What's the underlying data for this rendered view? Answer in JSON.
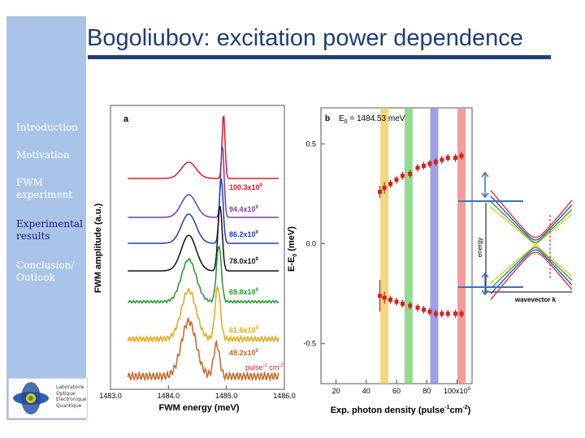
{
  "slide": {
    "title": "Bogoliubov: excitation power dependence"
  },
  "sidebar": {
    "items": [
      {
        "label": "Introduction",
        "color": "#ffffff"
      },
      {
        "label": "Motivation",
        "color": "#ffffff"
      },
      {
        "label": "FWM experiment",
        "lines": [
          "FWM",
          "experiment"
        ],
        "color": "#ffffff"
      },
      {
        "label": "Experimental results",
        "lines": [
          "Experimental",
          "results"
        ],
        "color": "#1a1a80"
      },
      {
        "label": "Conclusion/ Outlook",
        "lines": [
          "Conclusion/",
          "Outlook"
        ],
        "color": "#ffffff"
      }
    ],
    "logo_lines": [
      "Laboratoire",
      "Optique",
      "Electronique",
      "Quantique"
    ]
  },
  "chart_data": [
    {
      "type": "line",
      "panel": "a",
      "xlabel": "FWM energy (meV)",
      "ylabel": "FWM amplitude (a.u.)",
      "x_ticks": [
        "1483.0",
        "1484.0",
        "1485.0",
        "1486.0"
      ],
      "xlim": [
        1483.0,
        1486.0
      ],
      "series": [
        {
          "name": "100.3x10^9",
          "label": "100.3x10",
          "color": "#e0182a"
        },
        {
          "name": "94.4x10^9",
          "label": "94.4x10",
          "color": "#7a3aa6"
        },
        {
          "name": "86.2x10^9",
          "label": "86.2x10",
          "color": "#1f3fb0"
        },
        {
          "name": "78.0x10^9",
          "label": "78.0x10",
          "color": "#111111"
        },
        {
          "name": "69.8x10^9",
          "label": "69.8x10",
          "color": "#1f9a2a"
        },
        {
          "name": "61.6x10^9",
          "label": "61.6x10",
          "color": "#e6a712"
        },
        {
          "name": "49.2x10^9",
          "label": "49.2x10",
          "color": "#c86422"
        }
      ],
      "exponent_label": "9",
      "unit_label": "pulse",
      "unit_label2": "cm",
      "unit_exp1": "-1",
      "unit_exp2": "-2"
    },
    {
      "type": "scatter",
      "panel": "b",
      "annotation": "E",
      "annotation_sub": "0",
      "annotation_value": " = 1484.53 meV",
      "xlabel": "Exp. photon density (pulse",
      "xlabel_exp1": "-1",
      "xlabel_mid": "cm",
      "xlabel_exp2": "-2",
      "xlabel_end": ")",
      "ylabel": "E-E",
      "ylabel_sub": "0",
      "ylabel_end": " (meV)",
      "x_ticks": [
        "20",
        "40",
        "60",
        "80",
        "100x10"
      ],
      "x_tick_exp": "9",
      "y_ticks": [
        "0.5",
        "0.0",
        "-0.5"
      ],
      "xlim": [
        10,
        110
      ],
      "ylim": [
        -0.7,
        0.68
      ],
      "upper_branch": {
        "x": [
          49,
          52,
          56,
          60,
          64,
          69,
          74,
          78,
          82,
          86,
          90,
          94,
          99,
          103
        ],
        "y": [
          0.26,
          0.28,
          0.3,
          0.32,
          0.34,
          0.35,
          0.38,
          0.39,
          0.4,
          0.41,
          0.42,
          0.43,
          0.43,
          0.44
        ],
        "err": [
          0.03,
          0.03,
          0.02,
          0.02,
          0.02,
          0.02,
          0.02,
          0.02,
          0.02,
          0.02,
          0.02,
          0.02,
          0.02,
          0.02
        ]
      },
      "lower_branch": {
        "x": [
          49,
          52,
          56,
          60,
          64,
          69,
          74,
          78,
          82,
          86,
          90,
          94,
          99,
          103
        ],
        "y": [
          -0.26,
          -0.27,
          -0.28,
          -0.29,
          -0.3,
          -0.31,
          -0.32,
          -0.33,
          -0.34,
          -0.35,
          -0.35,
          -0.35,
          -0.35,
          -0.35
        ],
        "err": [
          0.08,
          0.03,
          0.02,
          0.02,
          0.02,
          0.02,
          0.02,
          0.02,
          0.02,
          0.02,
          0.02,
          0.02,
          0.02,
          0.02
        ]
      },
      "bands": [
        {
          "x": 52,
          "color": "#f2cf6a"
        },
        {
          "x": 68,
          "color": "#7fd67f"
        },
        {
          "x": 85,
          "color": "#8c8fde"
        },
        {
          "x": 103,
          "color": "#ef8c8c"
        }
      ]
    },
    {
      "type": "line",
      "panel": "inset",
      "xlabel": "wavevector k",
      "ylabel": "energy",
      "colors": [
        "#e6c21a",
        "#1fa33a",
        "#2c3fd4",
        "#e12525"
      ]
    }
  ]
}
